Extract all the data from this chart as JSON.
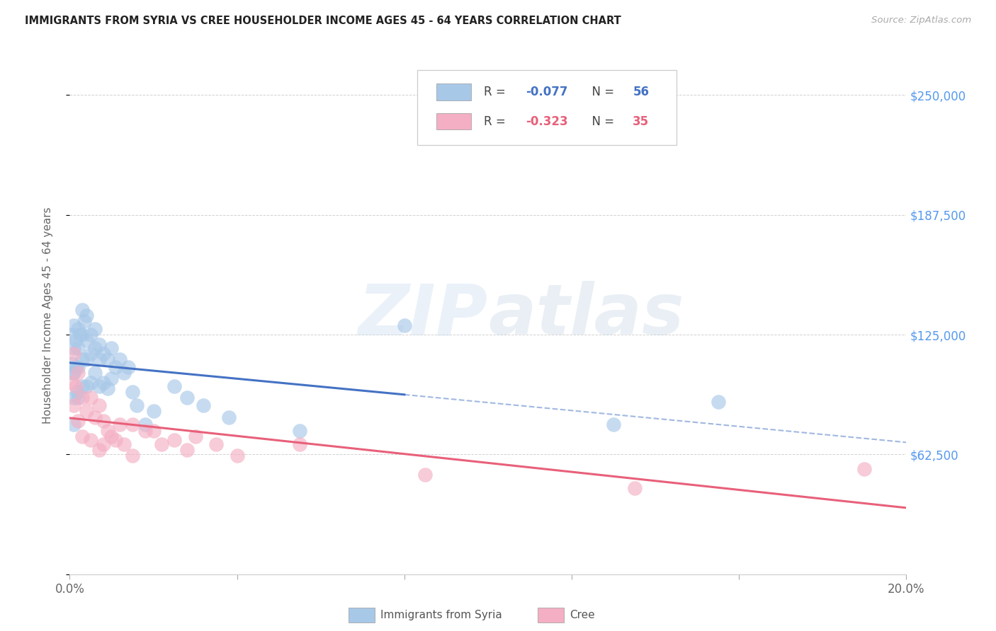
{
  "title": "IMMIGRANTS FROM SYRIA VS CREE HOUSEHOLDER INCOME AGES 45 - 64 YEARS CORRELATION CHART",
  "source": "Source: ZipAtlas.com",
  "ylabel_label": "Householder Income Ages 45 - 64 years",
  "watermark_zip": "ZIP",
  "watermark_atlas": "atlas",
  "x_min": 0.0,
  "x_max": 0.2,
  "y_min": 0,
  "y_max": 270000,
  "x_ticks": [
    0.0,
    0.04,
    0.08,
    0.12,
    0.16,
    0.2
  ],
  "x_tick_labels": [
    "0.0%",
    "",
    "",
    "",
    "",
    "20.0%"
  ],
  "y_ticks": [
    0,
    62500,
    125000,
    187500,
    250000
  ],
  "y_right_labels": [
    "",
    "$62,500",
    "$125,000",
    "$187,500",
    "$250,000"
  ],
  "syria_color": "#a8c8e8",
  "cree_color": "#f4afc4",
  "syria_line_color": "#4472c4",
  "cree_line_color": "#e8607a",
  "legend_syria_label": "Immigrants from Syria",
  "legend_cree_label": "Cree",
  "syria_R": "-0.077",
  "syria_N": "56",
  "cree_R": "-0.323",
  "cree_N": "35",
  "syria_x": [
    0.0005,
    0.0005,
    0.0008,
    0.001,
    0.001,
    0.001,
    0.001,
    0.001,
    0.0015,
    0.0015,
    0.0018,
    0.002,
    0.002,
    0.002,
    0.002,
    0.0025,
    0.003,
    0.003,
    0.003,
    0.003,
    0.0035,
    0.004,
    0.004,
    0.004,
    0.004,
    0.005,
    0.005,
    0.005,
    0.006,
    0.006,
    0.006,
    0.007,
    0.007,
    0.007,
    0.008,
    0.008,
    0.009,
    0.009,
    0.01,
    0.01,
    0.011,
    0.012,
    0.013,
    0.014,
    0.015,
    0.016,
    0.018,
    0.02,
    0.025,
    0.028,
    0.032,
    0.038,
    0.055,
    0.08,
    0.13,
    0.155
  ],
  "syria_y": [
    125000,
    110000,
    105000,
    130000,
    118000,
    105000,
    92000,
    78000,
    122000,
    108000,
    95000,
    128000,
    118000,
    108000,
    92000,
    125000,
    138000,
    125000,
    112000,
    98000,
    132000,
    135000,
    122000,
    112000,
    98000,
    125000,
    115000,
    100000,
    128000,
    118000,
    105000,
    120000,
    112000,
    98000,
    115000,
    100000,
    112000,
    97000,
    118000,
    102000,
    108000,
    112000,
    105000,
    108000,
    95000,
    88000,
    78000,
    85000,
    98000,
    92000,
    88000,
    82000,
    75000,
    130000,
    78000,
    90000
  ],
  "cree_x": [
    0.0005,
    0.001,
    0.001,
    0.0015,
    0.002,
    0.002,
    0.003,
    0.003,
    0.004,
    0.005,
    0.005,
    0.006,
    0.007,
    0.007,
    0.008,
    0.008,
    0.009,
    0.01,
    0.011,
    0.012,
    0.013,
    0.015,
    0.015,
    0.018,
    0.02,
    0.022,
    0.025,
    0.028,
    0.03,
    0.035,
    0.04,
    0.055,
    0.085,
    0.135,
    0.19
  ],
  "cree_y": [
    100000,
    115000,
    88000,
    98000,
    105000,
    80000,
    92000,
    72000,
    85000,
    92000,
    70000,
    82000,
    88000,
    65000,
    80000,
    68000,
    75000,
    72000,
    70000,
    78000,
    68000,
    78000,
    62000,
    75000,
    75000,
    68000,
    70000,
    65000,
    72000,
    68000,
    62000,
    68000,
    52000,
    45000,
    55000
  ]
}
